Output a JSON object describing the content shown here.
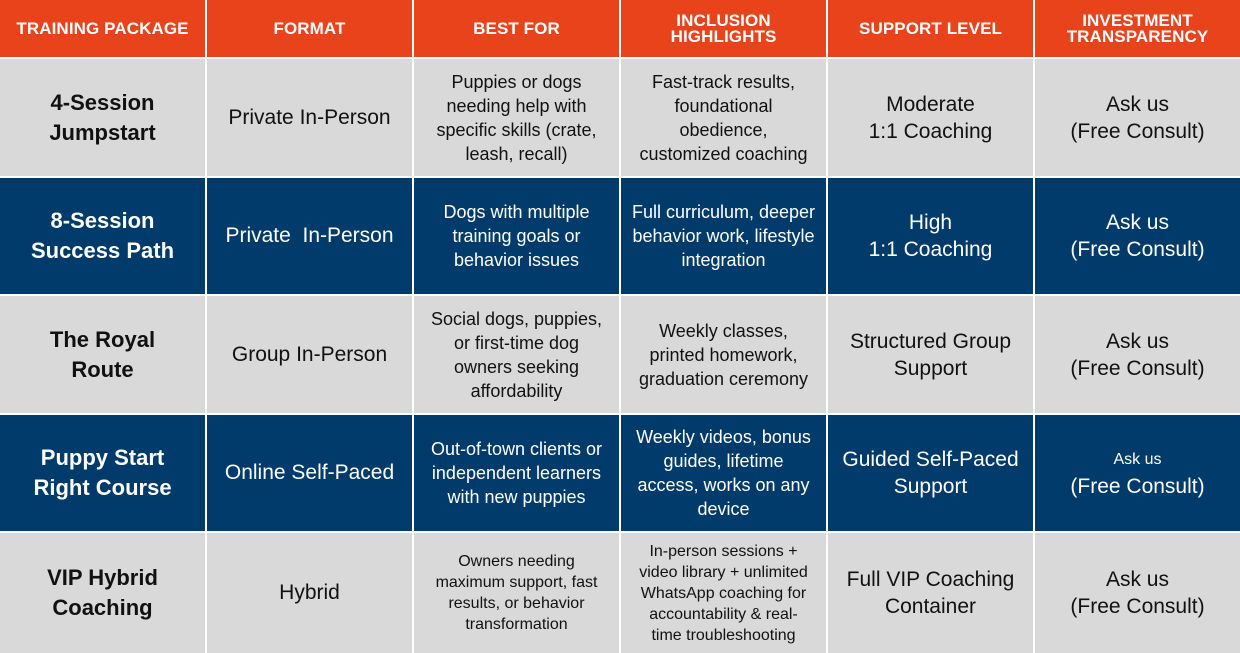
{
  "headers": [
    "TRAINING PACKAGE",
    "FORMAT",
    "BEST FOR",
    "INCLUSION\nHIGHLIGHTS",
    "SUPPORT LEVEL",
    "INVESTMENT\nTRANSPARENCY"
  ],
  "rows": [
    {
      "package": [
        "4-Session",
        "Jumpstart"
      ],
      "format": "Private In-Person",
      "best_for": [
        "Puppies or dogs",
        "needing help with",
        "specific skills (crate,",
        "leash, recall)"
      ],
      "inclusions": [
        "Fast-track results,",
        "foundational",
        "obedience,",
        "customized coaching"
      ],
      "support": [
        "Moderate",
        "1:1 Coaching"
      ],
      "investment": [
        "Ask us",
        "(Free Consult)"
      ]
    },
    {
      "package": [
        "8-Session",
        "Success Path"
      ],
      "format": "Private  In-Person",
      "best_for": [
        "Dogs with multiple",
        "training goals or",
        "behavior issues"
      ],
      "inclusions": [
        "Full curriculum, deeper",
        "behavior work, lifestyle",
        "integration"
      ],
      "support": [
        "High",
        "1:1 Coaching"
      ],
      "investment": [
        "Ask us",
        "(Free Consult)"
      ]
    },
    {
      "package": [
        "The Royal",
        "Route"
      ],
      "format": "Group In-Person",
      "best_for": [
        "Social dogs, puppies,",
        "or first-time dog",
        "owners  seeking",
        "affordability"
      ],
      "inclusions": [
        "Weekly classes,",
        "printed homework,",
        "graduation ceremony"
      ],
      "support": [
        "Structured Group",
        "Support"
      ],
      "investment": [
        "Ask us",
        "(Free Consult)"
      ]
    },
    {
      "package": [
        "Puppy Start",
        "Right Course"
      ],
      "format": "Online Self-Paced",
      "best_for": [
        "Out-of-town clients  or",
        "independent learners",
        "with new puppies"
      ],
      "inclusions": [
        "Weekly videos, bonus",
        "guides, lifetime",
        "access, works on any",
        "device"
      ],
      "support": [
        "Guided Self-Paced",
        "Support"
      ],
      "investment": [
        "Ask us",
        "(Free Consult)"
      ]
    },
    {
      "package": [
        "VIP Hybrid",
        "Coaching"
      ],
      "format": "Hybrid",
      "best_for": [
        "Owners needing",
        "maximum  support, fast",
        "results, or behavior",
        "transformation"
      ],
      "inclusions": [
        "In-person sessions +",
        "video library + unlimited",
        "WhatsApp coaching for",
        "accountability & real-",
        "time troubleshooting"
      ],
      "support": [
        "Full VIP Coaching",
        "Container"
      ],
      "investment": [
        "Ask us",
        "(Free Consult)"
      ]
    }
  ],
  "colors": {
    "header_bg": "#e8431b",
    "light_row_bg": "#d9d9d9",
    "dark_row_bg": "#003b6b"
  }
}
